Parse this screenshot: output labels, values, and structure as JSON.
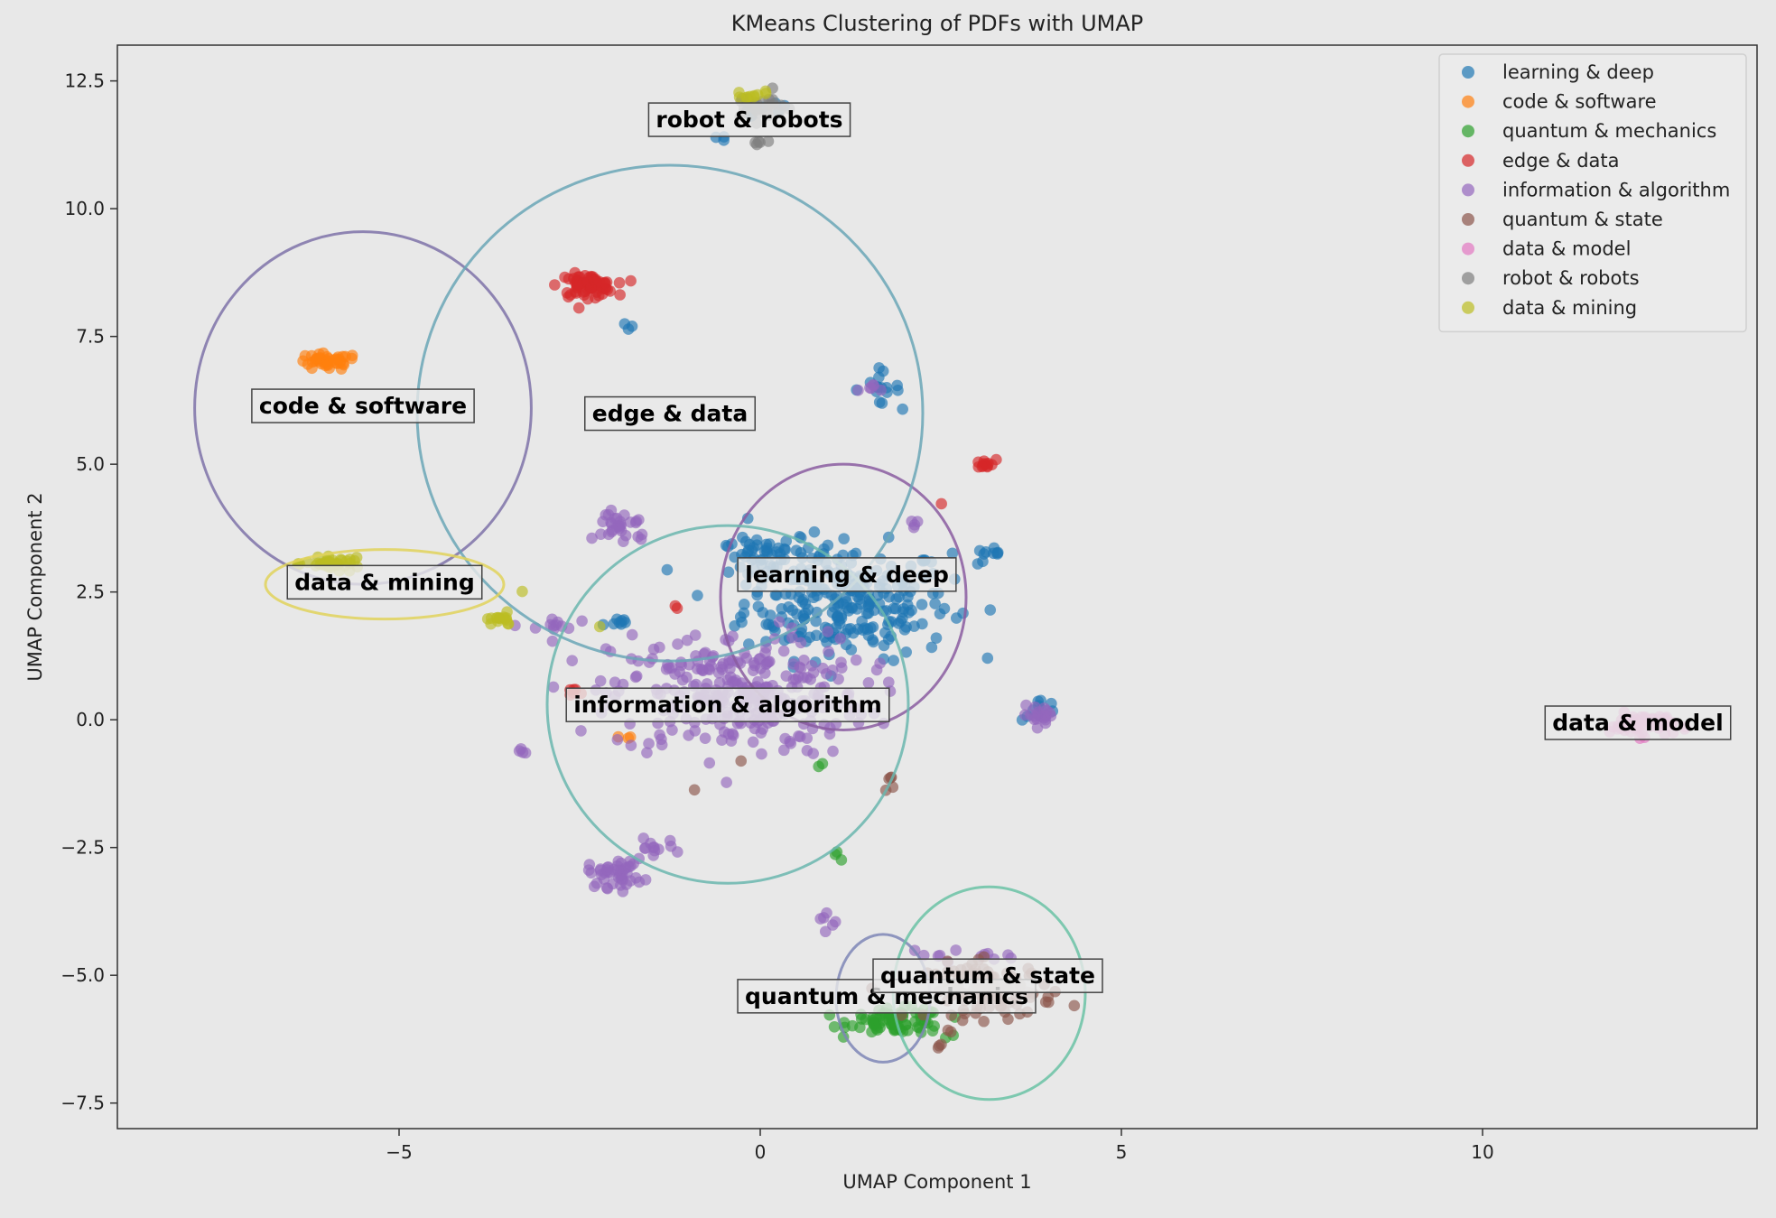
{
  "colors": {
    "background": "#e8e8e8",
    "plot_background": "#e8e8e8",
    "axis": "#333333"
  },
  "chart_data": {
    "type": "scatter",
    "title": "KMeans Clustering of PDFs with UMAP",
    "xlabel": "UMAP Component 1",
    "ylabel": "UMAP Component 2",
    "xlim": [
      -8.9,
      13.8
    ],
    "ylim": [
      -8.0,
      13.2
    ],
    "xticks": [
      -5,
      0,
      5,
      10
    ],
    "xtick_labels": [
      "−5",
      "0",
      "5",
      "10"
    ],
    "yticks": [
      -7.5,
      -5.0,
      -2.5,
      0.0,
      2.5,
      5.0,
      7.5,
      10.0,
      12.5
    ],
    "ytick_labels": [
      "−7.5",
      "−5.0",
      "−2.5",
      "0.0",
      "2.5",
      "5.0",
      "7.5",
      "10.0",
      "12.5"
    ],
    "grid": false,
    "legend_position": "top-right",
    "series": [
      {
        "name": "learning & deep",
        "color": "#1f77b4"
      },
      {
        "name": "code & software",
        "color": "#ff7f0e"
      },
      {
        "name": "quantum & mechanics",
        "color": "#2ca02c"
      },
      {
        "name": "edge & data",
        "color": "#d62728"
      },
      {
        "name": "information & algorithm",
        "color": "#9467bd"
      },
      {
        "name": "quantum & state",
        "color": "#8c564b"
      },
      {
        "name": "data & model",
        "color": "#e377c2"
      },
      {
        "name": "robot & robots",
        "color": "#7f7f7f"
      },
      {
        "name": "data & mining",
        "color": "#bcbd22"
      }
    ],
    "clusters": [
      {
        "series": 0,
        "label": "learning & deep",
        "label_x": 1.2,
        "label_y": 2.85,
        "circle": {
          "cx": 1.15,
          "cy": 2.4,
          "rx": 1.7,
          "ry": 2.6,
          "color": "#8a5ca0"
        },
        "blobs": [
          [
            1.2,
            2.3,
            1.3,
            1.0,
            260
          ],
          [
            0.2,
            3.2,
            0.7,
            0.3,
            40
          ],
          [
            1.6,
            6.5,
            0.3,
            0.3,
            16
          ],
          [
            3.2,
            3.2,
            0.25,
            0.15,
            10
          ],
          [
            3.9,
            0.2,
            0.25,
            0.2,
            10
          ],
          [
            -2.0,
            1.9,
            0.2,
            0.12,
            8
          ],
          [
            -1.8,
            7.7,
            0.1,
            0.1,
            3
          ],
          [
            0.0,
            12.0,
            0.5,
            0.3,
            8
          ],
          [
            -0.5,
            11.4,
            0.1,
            0.1,
            3
          ],
          [
            -0.1,
            3.4,
            0.3,
            0.3,
            12
          ]
        ]
      },
      {
        "series": 1,
        "label": "code & software",
        "label_x": -5.5,
        "label_y": 6.15,
        "circle": {
          "cx": -5.5,
          "cy": 6.1,
          "rx": 2.33,
          "ry": 3.45,
          "color": "#7e72a8"
        },
        "blobs": [
          [
            -6.0,
            7.0,
            0.4,
            0.15,
            40
          ],
          [
            -1.9,
            -0.35,
            0.15,
            0.05,
            3
          ]
        ]
      },
      {
        "series": 2,
        "label": "quantum & mechanics",
        "label_x": 1.75,
        "label_y": -5.4,
        "circle": {
          "cx": 1.7,
          "cy": -5.45,
          "rx": 0.65,
          "ry": 1.25,
          "color": "#7e86b6"
        },
        "blobs": [
          [
            1.9,
            -5.9,
            0.6,
            0.22,
            80
          ],
          [
            1.1,
            -2.6,
            0.1,
            0.15,
            3
          ],
          [
            0.9,
            -0.8,
            0.1,
            0.1,
            2
          ],
          [
            2.6,
            -6.2,
            0.1,
            0.1,
            2
          ]
        ]
      },
      {
        "series": 3,
        "label": "edge & data",
        "label_x": -1.25,
        "label_y": 6.0,
        "circle": {
          "cx": -1.25,
          "cy": 6.0,
          "rx": 3.5,
          "ry": 4.85,
          "color": "#6aa6b6"
        },
        "blobs": [
          [
            -2.4,
            8.5,
            0.35,
            0.2,
            70
          ],
          [
            3.1,
            5.0,
            0.15,
            0.08,
            12
          ],
          [
            -2.6,
            0.5,
            0.15,
            0.1,
            6
          ],
          [
            -1.2,
            2.2,
            0.1,
            0.1,
            2
          ],
          [
            2.5,
            4.2,
            0.05,
            0.05,
            1
          ]
        ]
      },
      {
        "series": 4,
        "label": "information & algorithm",
        "label_x": -0.45,
        "label_y": 0.3,
        "circle": {
          "cx": -0.45,
          "cy": 0.3,
          "rx": 2.5,
          "ry": 3.5,
          "color": "#6ab6ae"
        },
        "blobs": [
          [
            -0.3,
            0.5,
            1.6,
            1.1,
            300
          ],
          [
            -1.9,
            3.8,
            0.35,
            0.35,
            30
          ],
          [
            -2.0,
            -3.0,
            0.35,
            0.25,
            45
          ],
          [
            -1.5,
            -2.5,
            0.3,
            0.15,
            12
          ],
          [
            -2.9,
            1.8,
            0.3,
            0.2,
            12
          ],
          [
            -3.3,
            -0.6,
            0.1,
            0.1,
            4
          ],
          [
            3.9,
            0.1,
            0.25,
            0.15,
            20
          ],
          [
            0.9,
            -4.0,
            0.15,
            0.25,
            6
          ],
          [
            2.8,
            -4.6,
            0.7,
            0.1,
            12
          ],
          [
            2.1,
            3.8,
            0.12,
            0.1,
            4
          ],
          [
            1.6,
            6.5,
            0.2,
            0.2,
            6
          ]
        ]
      },
      {
        "series": 5,
        "label": "quantum & state",
        "label_x": 3.15,
        "label_y": -5.0,
        "circle": {
          "cx": 3.17,
          "cy": -5.35,
          "rx": 1.33,
          "ry": 2.08,
          "color": "#6ac2a4"
        },
        "blobs": [
          [
            3.2,
            -5.3,
            0.8,
            0.5,
            100
          ],
          [
            1.8,
            -1.2,
            0.1,
            0.15,
            5
          ],
          [
            -0.9,
            -1.4,
            0.05,
            0.05,
            1
          ],
          [
            -0.2,
            -0.8,
            0.05,
            0.05,
            1
          ],
          [
            2.5,
            -6.4,
            0.1,
            0.1,
            3
          ]
        ]
      },
      {
        "series": 6,
        "label": "data & model",
        "label_x": 12.15,
        "label_y": -0.05,
        "circle": null,
        "blobs": [
          [
            12.2,
            -0.1,
            0.4,
            0.2,
            60
          ]
        ]
      },
      {
        "series": 7,
        "label": "robot & robots",
        "label_x": -0.15,
        "label_y": 11.75,
        "circle": null,
        "blobs": [
          [
            -0.05,
            12.0,
            0.35,
            0.25,
            30
          ],
          [
            0.0,
            11.3,
            0.15,
            0.1,
            5
          ]
        ]
      },
      {
        "series": 8,
        "label": "data & mining",
        "label_x": -5.2,
        "label_y": 2.7,
        "circle": {
          "cx": -5.2,
          "cy": 2.65,
          "rx": 1.65,
          "ry": 0.68,
          "color": "#e0d25a"
        },
        "blobs": [
          [
            -5.9,
            3.05,
            0.35,
            0.1,
            40
          ],
          [
            -3.6,
            1.95,
            0.2,
            0.1,
            15
          ],
          [
            -3.3,
            2.5,
            0.05,
            0.05,
            1
          ],
          [
            -2.2,
            1.8,
            0.05,
            0.05,
            1
          ],
          [
            -0.2,
            12.2,
            0.3,
            0.1,
            10
          ]
        ]
      }
    ]
  }
}
